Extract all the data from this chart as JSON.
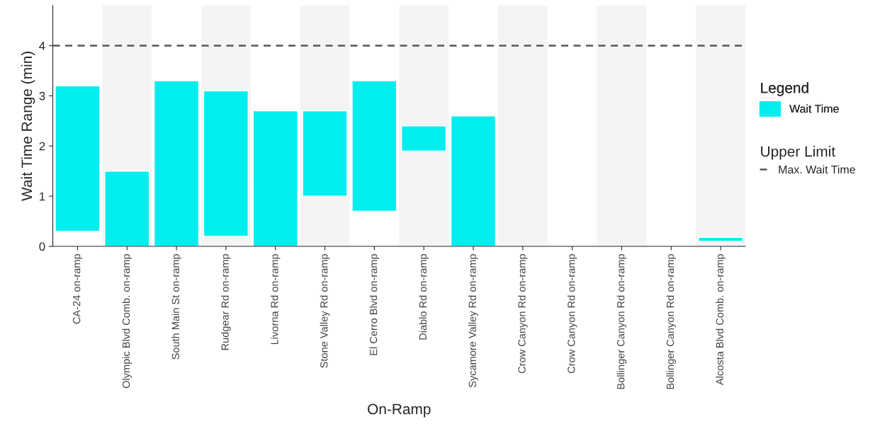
{
  "chart_data": {
    "type": "bar",
    "xlabel": "On-Ramp",
    "ylabel": "Wait Time Range (min)",
    "legend_title": "Legend",
    "categories": [
      "CA-24 on-ramp",
      "Olympic Blvd Comb. on-ramp",
      "South Main St on-ramp",
      "Rudgear Rd on-ramp",
      "Livorna Rd on-ramp",
      "Stone Valley Rd on-ramp",
      "El Cerro Blvd on-ramp",
      "Diablo Rd on-ramp",
      "Sycamore Valley Rd on-ramp",
      "Crow Canyon Rd on-ramp",
      "Crow Canyon Rd on-ramp",
      "Bollinger Canyon Rd on-ramp",
      "Bollinger Canyon Rd on-ramp",
      "Alcosta Blvd Comb. on-ramp"
    ],
    "series": [
      {
        "name": "Wait Time",
        "color": "#00eeee",
        "values": [
          2.9,
          1.5,
          3.3,
          2.9,
          2.7,
          1.7,
          2.6,
          0.5,
          2.6,
          null,
          null,
          null,
          null,
          0.08
        ],
        "base": [
          0.3,
          0,
          0,
          0.2,
          0,
          1.0,
          0.7,
          1.9,
          0,
          null,
          null,
          null,
          null,
          0.1
        ]
      }
    ],
    "ylim": [
      0,
      4.8
    ],
    "yticks": [
      0,
      1,
      2,
      3,
      4
    ],
    "grid": false,
    "legend": "right",
    "ref_lines": [
      {
        "axis": "y",
        "value": 4,
        "label": "Max. Wait Time",
        "color": "#555555",
        "line_style": "dashed"
      }
    ],
    "bands": [
      {
        "axis": "x",
        "from": "Olympic Blvd Comb. on-ramp",
        "to": "Olympic Blvd Comb. on-ramp",
        "color": "#f4f4f4"
      },
      {
        "axis": "x",
        "from": "Rudgear Rd on-ramp",
        "to": "Rudgear Rd on-ramp",
        "color": "#f4f4f4"
      },
      {
        "axis": "x",
        "from": "Stone Valley Rd on-ramp",
        "to": "Stone Valley Rd on-ramp",
        "color": "#f4f4f4"
      },
      {
        "axis": "x",
        "from": "Diablo Rd on-ramp",
        "to": "Diablo Rd on-ramp",
        "color": "#f4f4f4"
      },
      {
        "axis": "x",
        "from": "Crow Canyon Rd on-ramp",
        "to": "Crow Canyon Rd on-ramp",
        "color": "#f4f4f4"
      },
      {
        "axis": "x",
        "from": "Bollinger Canyon Rd on-ramp",
        "to": "Bollinger Canyon Rd on-ramp",
        "color": "#f4f4f4"
      },
      {
        "axis": "x",
        "from": "Alcosta Blvd Comb. on-ramp",
        "to": "Alcosta Blvd Comb. on-ramp",
        "color": "#f4f4f4"
      }
    ],
    "annotations": [
      "Upper Limit"
    ]
  }
}
